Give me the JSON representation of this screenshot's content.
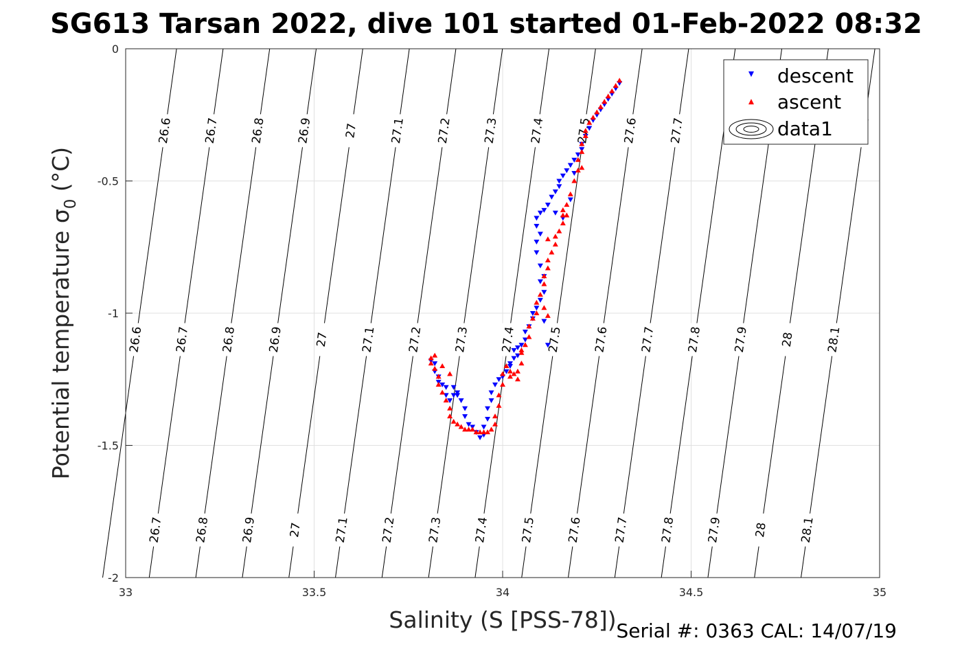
{
  "chart_data": {
    "type": "scatter",
    "title": "SG613 Tarsan 2022, dive 101 started 01-Feb-2022 08:32",
    "xlabel": "Salinity (S [PSS-78])",
    "ylabel_main": "Potential temperature σ",
    "ylabel_sub": "0",
    "ylabel_unit": " (°C)",
    "xlim": [
      33,
      35
    ],
    "ylim": [
      -2,
      0
    ],
    "x_ticks": [
      "33",
      "33.5",
      "34",
      "34.5",
      "35"
    ],
    "y_ticks": [
      "0",
      "-0.5",
      "-1",
      "-1.5",
      "-2"
    ],
    "grid": true,
    "legend_position": "top-right",
    "legend": [
      "descent",
      "ascent",
      "data1"
    ],
    "colors": {
      "descent": "#0000ff",
      "ascent": "#ff0000",
      "contour": "#000000",
      "grid": "#e0e0e0"
    },
    "isopycnals": {
      "levels": [
        "26.6",
        "26.7",
        "26.8",
        "26.9",
        "27",
        "27.1",
        "27.2",
        "27.3",
        "27.4",
        "27.5",
        "27.6",
        "27.7",
        "27.8",
        "27.9",
        "28",
        "28.1"
      ],
      "top_labels": [
        "26.6",
        "26.7",
        "26.8",
        "26.9",
        "27",
        "27.1",
        "27.2",
        "27.3",
        "27.4",
        "27.5",
        "27.6",
        "27.7",
        "28.1"
      ],
      "middle_labels": [
        "26.6",
        "26.7",
        "26.8",
        "26.9",
        "27",
        "27.1",
        "27.2",
        "27.3",
        "27.4",
        "27.5",
        "27.6",
        "27.7",
        "27.8",
        "27.9",
        "28",
        "28.1"
      ],
      "bottom_labels": [
        "26.6",
        "26.7",
        "26.8",
        "26.9",
        "27",
        "27.1",
        "27.2",
        "27.3",
        "27.4",
        "27.5",
        "27.6",
        "27.7",
        "27.8",
        "27.9",
        "28",
        "28.1"
      ]
    },
    "series": [
      {
        "name": "descent",
        "marker": "down-triangle",
        "points": [
          [
            34.31,
            -0.13
          ],
          [
            34.3,
            -0.15
          ],
          [
            34.29,
            -0.17
          ],
          [
            34.28,
            -0.19
          ],
          [
            34.27,
            -0.21
          ],
          [
            34.26,
            -0.23
          ],
          [
            34.25,
            -0.25
          ],
          [
            34.24,
            -0.27
          ],
          [
            34.23,
            -0.3
          ],
          [
            34.22,
            -0.33
          ],
          [
            34.21,
            -0.36
          ],
          [
            34.21,
            -0.38
          ],
          [
            34.2,
            -0.4
          ],
          [
            34.19,
            -0.42
          ],
          [
            34.18,
            -0.44
          ],
          [
            34.17,
            -0.46
          ],
          [
            34.16,
            -0.48
          ],
          [
            34.15,
            -0.5
          ],
          [
            34.15,
            -0.52
          ],
          [
            34.14,
            -0.54
          ],
          [
            34.13,
            -0.56
          ],
          [
            34.12,
            -0.59
          ],
          [
            34.11,
            -0.61
          ],
          [
            34.1,
            -0.62
          ],
          [
            34.09,
            -0.64
          ],
          [
            34.09,
            -0.67
          ],
          [
            34.1,
            -0.7
          ],
          [
            34.09,
            -0.73
          ],
          [
            34.09,
            -0.77
          ],
          [
            34.1,
            -0.82
          ],
          [
            34.11,
            -0.86
          ],
          [
            34.1,
            -0.88
          ],
          [
            34.11,
            -0.92
          ],
          [
            34.1,
            -0.95
          ],
          [
            34.09,
            -0.98
          ],
          [
            34.08,
            -1.0
          ],
          [
            34.08,
            -1.02
          ],
          [
            34.07,
            -1.05
          ],
          [
            34.06,
            -1.07
          ],
          [
            34.06,
            -1.1
          ],
          [
            34.05,
            -1.12
          ],
          [
            34.04,
            -1.13
          ],
          [
            34.03,
            -1.14
          ],
          [
            34.03,
            -1.17
          ],
          [
            34.02,
            -1.2
          ],
          [
            34.01,
            -1.22
          ],
          [
            34.0,
            -1.24
          ],
          [
            33.99,
            -1.25
          ],
          [
            33.98,
            -1.27
          ],
          [
            33.97,
            -1.3
          ],
          [
            33.97,
            -1.33
          ],
          [
            33.96,
            -1.36
          ],
          [
            33.96,
            -1.4
          ],
          [
            33.95,
            -1.43
          ],
          [
            33.95,
            -1.46
          ],
          [
            33.94,
            -1.47
          ],
          [
            33.93,
            -1.45
          ],
          [
            33.92,
            -1.43
          ],
          [
            33.91,
            -1.42
          ],
          [
            33.9,
            -1.39
          ],
          [
            33.9,
            -1.36
          ],
          [
            33.89,
            -1.33
          ],
          [
            33.88,
            -1.3
          ],
          [
            33.87,
            -1.31
          ],
          [
            33.86,
            -1.33
          ],
          [
            33.85,
            -1.31
          ],
          [
            33.85,
            -1.28
          ],
          [
            33.84,
            -1.27
          ],
          [
            33.83,
            -1.26
          ],
          [
            33.83,
            -1.24
          ],
          [
            33.82,
            -1.22
          ],
          [
            33.82,
            -1.19
          ],
          [
            33.81,
            -1.18
          ],
          [
            33.87,
            -1.28
          ],
          [
            33.88,
            -1.31
          ],
          [
            34.04,
            -1.16
          ],
          [
            34.02,
            -1.19
          ],
          [
            34.12,
            -1.12
          ],
          [
            34.11,
            -1.03
          ],
          [
            34.16,
            -0.64
          ],
          [
            34.18,
            -0.57
          ],
          [
            34.14,
            -0.62
          ],
          [
            34.19,
            -0.47
          ]
        ]
      },
      {
        "name": "ascent",
        "marker": "up-triangle",
        "points": [
          [
            34.31,
            -0.12
          ],
          [
            34.3,
            -0.14
          ],
          [
            34.29,
            -0.16
          ],
          [
            34.28,
            -0.18
          ],
          [
            34.27,
            -0.2
          ],
          [
            34.26,
            -0.22
          ],
          [
            34.25,
            -0.24
          ],
          [
            34.24,
            -0.26
          ],
          [
            34.23,
            -0.28
          ],
          [
            34.22,
            -0.31
          ],
          [
            34.22,
            -0.33
          ],
          [
            34.21,
            -0.36
          ],
          [
            34.21,
            -0.39
          ],
          [
            34.2,
            -0.42
          ],
          [
            34.2,
            -0.46
          ],
          [
            34.19,
            -0.5
          ],
          [
            34.18,
            -0.55
          ],
          [
            34.17,
            -0.59
          ],
          [
            34.16,
            -0.63
          ],
          [
            34.16,
            -0.66
          ],
          [
            34.15,
            -0.69
          ],
          [
            34.14,
            -0.71
          ],
          [
            34.14,
            -0.74
          ],
          [
            34.13,
            -0.77
          ],
          [
            34.12,
            -0.8
          ],
          [
            34.12,
            -0.83
          ],
          [
            34.11,
            -0.86
          ],
          [
            34.11,
            -0.89
          ],
          [
            34.1,
            -0.93
          ],
          [
            34.09,
            -0.96
          ],
          [
            34.09,
            -1.0
          ],
          [
            34.08,
            -1.02
          ],
          [
            34.07,
            -1.05
          ],
          [
            34.07,
            -1.09
          ],
          [
            34.06,
            -1.12
          ],
          [
            34.05,
            -1.15
          ],
          [
            34.05,
            -1.19
          ],
          [
            34.04,
            -1.22
          ],
          [
            34.03,
            -1.23
          ],
          [
            34.02,
            -1.24
          ],
          [
            34.02,
            -1.22
          ],
          [
            34.01,
            -1.2
          ],
          [
            34.0,
            -1.23
          ],
          [
            34.0,
            -1.27
          ],
          [
            33.99,
            -1.31
          ],
          [
            33.99,
            -1.35
          ],
          [
            33.98,
            -1.39
          ],
          [
            33.98,
            -1.42
          ],
          [
            33.97,
            -1.44
          ],
          [
            33.96,
            -1.45
          ],
          [
            33.95,
            -1.45
          ],
          [
            33.94,
            -1.45
          ],
          [
            33.93,
            -1.45
          ],
          [
            33.92,
            -1.44
          ],
          [
            33.91,
            -1.44
          ],
          [
            33.9,
            -1.44
          ],
          [
            33.89,
            -1.43
          ],
          [
            33.88,
            -1.42
          ],
          [
            33.87,
            -1.41
          ],
          [
            33.86,
            -1.39
          ],
          [
            33.86,
            -1.36
          ],
          [
            33.85,
            -1.33
          ],
          [
            33.84,
            -1.3
          ],
          [
            33.83,
            -1.27
          ],
          [
            33.83,
            -1.24
          ],
          [
            33.82,
            -1.21
          ],
          [
            33.81,
            -1.19
          ],
          [
            33.81,
            -1.17
          ],
          [
            33.82,
            -1.16
          ],
          [
            33.84,
            -1.2
          ],
          [
            33.86,
            -1.23
          ],
          [
            34.05,
            -1.14
          ],
          [
            34.04,
            -1.25
          ],
          [
            34.12,
            -1.01
          ],
          [
            34.11,
            -0.98
          ],
          [
            34.17,
            -0.63
          ],
          [
            34.16,
            -0.61
          ],
          [
            34.21,
            -0.45
          ],
          [
            34.12,
            -0.72
          ]
        ]
      }
    ]
  },
  "footer": {
    "serial": "Serial #: 0363  CAL: 14/07/19"
  }
}
